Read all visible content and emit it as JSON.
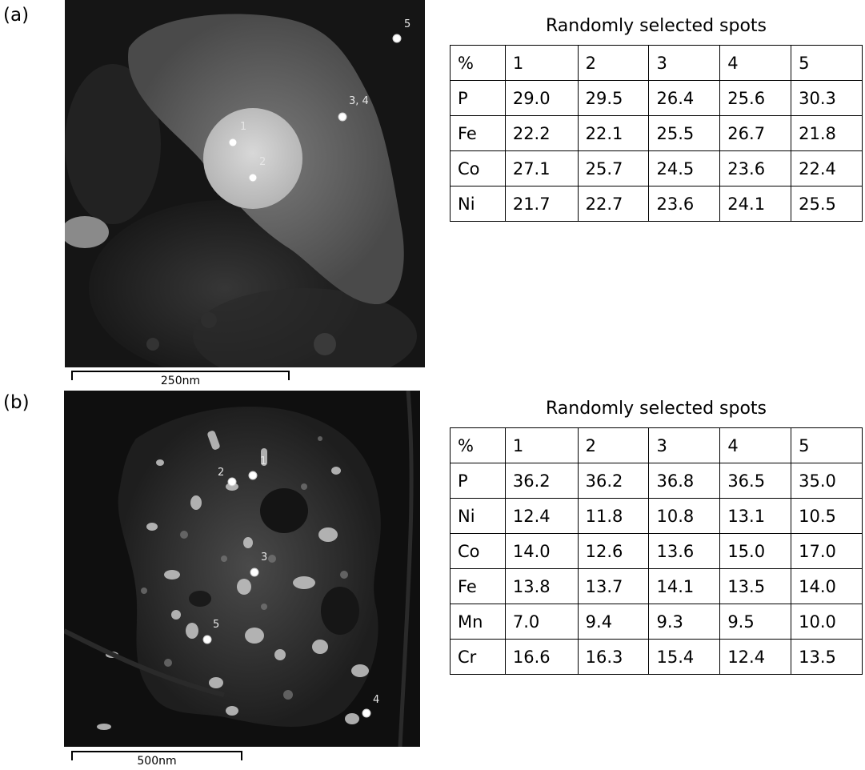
{
  "panel_a": {
    "label": "(a)",
    "table_title": "Randomly selected spots",
    "scale_label": "250nm",
    "spot_labels": [
      "1",
      "2",
      "3, 4",
      "5"
    ],
    "header": [
      "%",
      "1",
      "2",
      "3",
      "4",
      "5"
    ],
    "rows": [
      [
        "P",
        "29.0",
        "29.5",
        "26.4",
        "25.6",
        "30.3"
      ],
      [
        "Fe",
        "22.2",
        "22.1",
        "25.5",
        "26.7",
        "21.8"
      ],
      [
        "Co",
        "27.1",
        "25.7",
        "24.5",
        "23.6",
        "22.4"
      ],
      [
        "Ni",
        "21.7",
        "22.7",
        "23.6",
        "24.1",
        "25.5"
      ]
    ]
  },
  "panel_b": {
    "label": "(b)",
    "table_title": "Randomly selected spots",
    "scale_label": "500nm",
    "spot_labels": [
      "1",
      "2",
      "3",
      "4",
      "5"
    ],
    "header": [
      "%",
      "1",
      "2",
      "3",
      "4",
      "5"
    ],
    "rows": [
      [
        "P",
        "36.2",
        "36.2",
        "36.8",
        "36.5",
        "35.0"
      ],
      [
        "Ni",
        "12.4",
        "11.8",
        "10.8",
        "13.1",
        "10.5"
      ],
      [
        "Co",
        "14.0",
        "12.6",
        "13.6",
        "15.0",
        "17.0"
      ],
      [
        "Fe",
        "13.8",
        "13.7",
        "14.1",
        "13.5",
        "14.0"
      ],
      [
        "Mn",
        "7.0",
        "9.4",
        "9.3",
        "9.5",
        "10.0"
      ],
      [
        "Cr",
        "16.6",
        "16.3",
        "15.4",
        "12.4",
        "13.5"
      ]
    ]
  }
}
